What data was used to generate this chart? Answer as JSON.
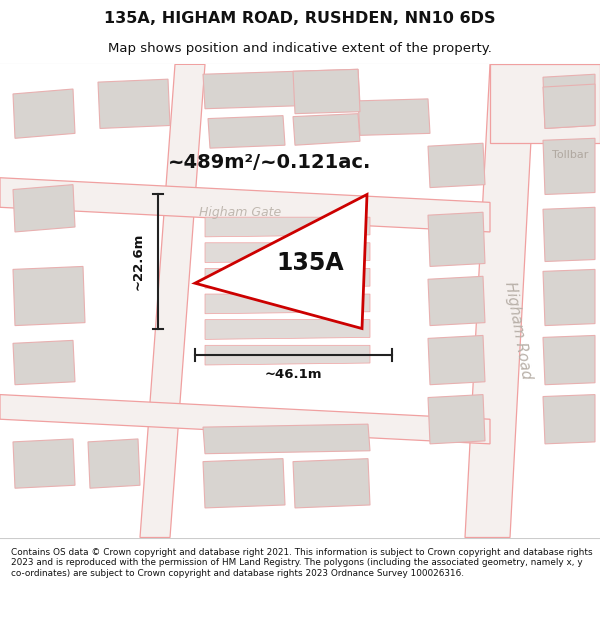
{
  "title": "135A, HIGHAM ROAD, RUSHDEN, NN10 6DS",
  "subtitle": "Map shows position and indicative extent of the property.",
  "footer": "Contains OS data © Crown copyright and database right 2021. This information is subject to Crown copyright and database rights 2023 and is reproduced with the permission of HM Land Registry. The polygons (including the associated geometry, namely x, y co-ordinates) are subject to Crown copyright and database rights 2023 Ordnance Survey 100026316.",
  "road_line_color": "#f0a0a0",
  "block_color": "#d8d4d0",
  "block_edge": "#e8b0b0",
  "road_fill": "#f5f0ee",
  "map_bg": "#f5f2ef",
  "highlight_color": "#cc0000",
  "highlight_fill": "#ffffff",
  "area_text": "~489m²/~0.121ac.",
  "label_135A": "135A",
  "dim_width": "~46.1m",
  "dim_height": "~22.6m",
  "road_label1": "Higham Road",
  "road_label2": "Higham Gate",
  "road_label3": "Tollbar"
}
